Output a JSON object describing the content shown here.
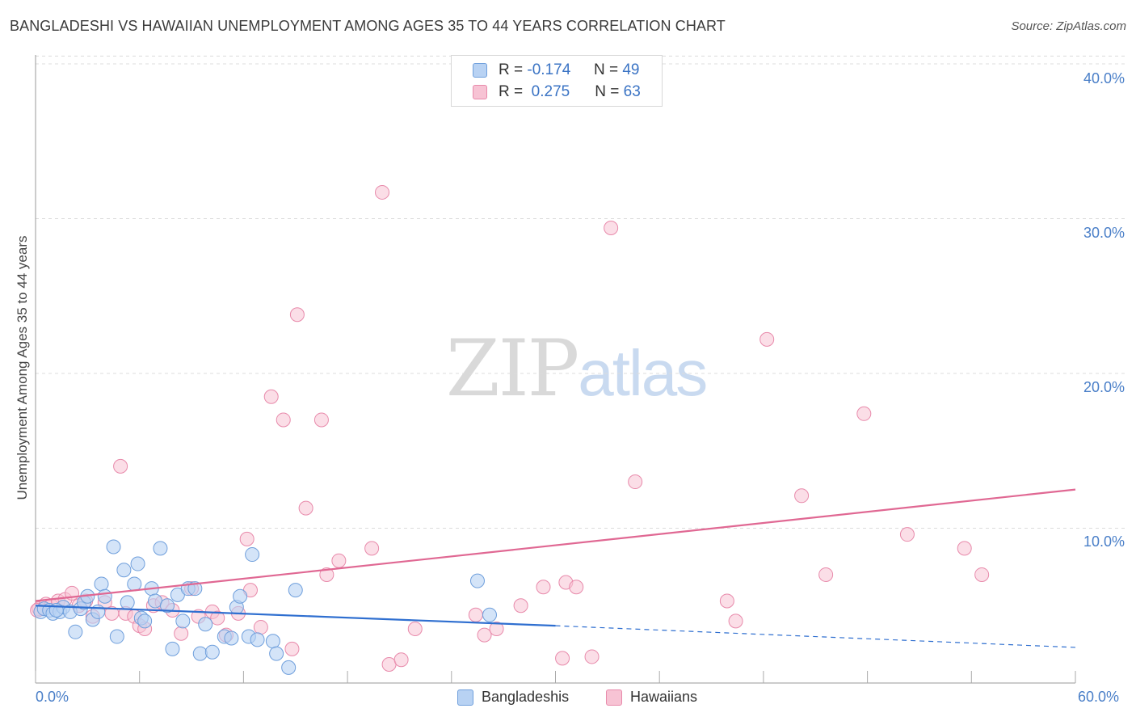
{
  "header": {
    "title": "BANGLADESHI VS HAWAIIAN UNEMPLOYMENT AMONG AGES 35 TO 44 YEARS CORRELATION CHART",
    "source": "Source: ZipAtlas.com"
  },
  "watermark": {
    "part1": "ZIP",
    "part2": "atlas"
  },
  "legend": {
    "rows": [
      {
        "r_label": "R =",
        "r_value": "-0.174",
        "n_label": "N =",
        "n_value": "49"
      },
      {
        "r_label": "R =",
        "r_value": "0.275",
        "n_label": "N =",
        "n_value": "63"
      }
    ]
  },
  "bottom_legend": {
    "s1": "Bangladeshis",
    "s2": "Hawaiians"
  },
  "colors": {
    "blue_fill": "#b8d2f3",
    "blue_stroke": "#6f9fdc",
    "blue_line": "#2f6fd0",
    "pink_fill": "#f7c3d4",
    "pink_stroke": "#e88aab",
    "pink_line": "#e06893",
    "tick": "#4a7fc8",
    "grid": "#dcdcdc"
  },
  "chart_data": {
    "type": "scatter",
    "title": "BANGLADESHI VS HAWAIIAN UNEMPLOYMENT AMONG AGES 35 TO 44 YEARS CORRELATION CHART",
    "xlabel": "",
    "ylabel": "Unemployment Among Ages 35 to 44 years",
    "xlim": [
      0,
      60
    ],
    "ylim": [
      0,
      40
    ],
    "x_tick_labels": [
      "0.0%",
      "60.0%"
    ],
    "y_ticks": [
      10,
      20,
      30,
      40
    ],
    "y_tick_labels": [
      "10.0%",
      "20.0%",
      "30.0%",
      "40.0%"
    ],
    "grid": true,
    "series": [
      {
        "name": "Bangladeshis",
        "r": -0.174,
        "n": 49,
        "trend": {
          "x0": 0,
          "y0": 5.0,
          "x1": 30,
          "y1": 3.7,
          "dash_to_x": 60,
          "dash_to_y": 2.3
        },
        "points": [
          [
            0.3,
            4.6
          ],
          [
            0.5,
            4.8
          ],
          [
            0.8,
            4.7
          ],
          [
            1.0,
            4.5
          ],
          [
            1.4,
            4.6
          ],
          [
            1.6,
            4.9
          ],
          [
            2.0,
            4.6
          ],
          [
            2.3,
            3.3
          ],
          [
            2.6,
            4.8
          ],
          [
            2.8,
            5.2
          ],
          [
            3.0,
            5.6
          ],
          [
            3.3,
            4.1
          ],
          [
            3.6,
            4.6
          ],
          [
            3.8,
            6.4
          ],
          [
            4.0,
            5.6
          ],
          [
            4.5,
            8.8
          ],
          [
            4.7,
            3.0
          ],
          [
            5.1,
            7.3
          ],
          [
            5.3,
            5.2
          ],
          [
            5.7,
            6.4
          ],
          [
            5.9,
            7.7
          ],
          [
            6.1,
            4.2
          ],
          [
            6.3,
            4.0
          ],
          [
            6.7,
            6.1
          ],
          [
            6.9,
            5.3
          ],
          [
            7.2,
            8.7
          ],
          [
            7.6,
            5.0
          ],
          [
            7.9,
            2.2
          ],
          [
            8.2,
            5.7
          ],
          [
            8.5,
            4.0
          ],
          [
            8.8,
            6.1
          ],
          [
            9.2,
            6.1
          ],
          [
            9.5,
            1.9
          ],
          [
            9.8,
            3.8
          ],
          [
            10.2,
            2.0
          ],
          [
            10.9,
            3.0
          ],
          [
            11.3,
            2.9
          ],
          [
            11.6,
            4.9
          ],
          [
            11.8,
            5.6
          ],
          [
            12.5,
            8.3
          ],
          [
            12.3,
            3.0
          ],
          [
            12.8,
            2.8
          ],
          [
            13.7,
            2.7
          ],
          [
            13.9,
            1.9
          ],
          [
            14.6,
            1.0
          ],
          [
            15.0,
            6.0
          ],
          [
            25.5,
            6.6
          ],
          [
            26.2,
            4.4
          ],
          [
            1.2,
            4.7
          ]
        ]
      },
      {
        "name": "Hawaiians",
        "r": 0.275,
        "n": 63,
        "trend": {
          "x0": 0,
          "y0": 5.3,
          "x1": 60,
          "y1": 12.5
        },
        "points": [
          [
            0.2,
            4.8
          ],
          [
            0.6,
            5.1
          ],
          [
            0.9,
            5.0
          ],
          [
            1.3,
            5.3
          ],
          [
            1.7,
            5.4
          ],
          [
            2.1,
            5.8
          ],
          [
            2.5,
            5.0
          ],
          [
            2.9,
            5.3
          ],
          [
            3.3,
            4.3
          ],
          [
            4.0,
            5.2
          ],
          [
            4.4,
            4.5
          ],
          [
            4.9,
            14.0
          ],
          [
            5.2,
            4.5
          ],
          [
            5.7,
            4.3
          ],
          [
            6.0,
            3.7
          ],
          [
            6.3,
            3.5
          ],
          [
            6.8,
            5.0
          ],
          [
            7.3,
            5.2
          ],
          [
            7.9,
            4.7
          ],
          [
            8.4,
            3.2
          ],
          [
            9.0,
            6.1
          ],
          [
            9.4,
            4.3
          ],
          [
            10.2,
            4.6
          ],
          [
            10.5,
            4.2
          ],
          [
            11.0,
            3.1
          ],
          [
            11.7,
            4.5
          ],
          [
            12.2,
            9.3
          ],
          [
            12.4,
            6.0
          ],
          [
            13.0,
            3.6
          ],
          [
            13.6,
            18.5
          ],
          [
            14.3,
            17.0
          ],
          [
            14.8,
            2.2
          ],
          [
            15.1,
            23.8
          ],
          [
            15.6,
            11.3
          ],
          [
            16.5,
            17.0
          ],
          [
            16.8,
            7.0
          ],
          [
            17.5,
            7.9
          ],
          [
            19.4,
            8.7
          ],
          [
            20.0,
            31.7
          ],
          [
            20.4,
            1.2
          ],
          [
            21.1,
            1.5
          ],
          [
            21.9,
            3.5
          ],
          [
            25.4,
            4.4
          ],
          [
            25.9,
            3.1
          ],
          [
            26.6,
            3.5
          ],
          [
            28.0,
            5.0
          ],
          [
            29.3,
            6.2
          ],
          [
            30.4,
            1.6
          ],
          [
            30.6,
            6.5
          ],
          [
            31.2,
            6.2
          ],
          [
            32.1,
            1.7
          ],
          [
            33.2,
            29.4
          ],
          [
            34.6,
            13.0
          ],
          [
            39.9,
            5.3
          ],
          [
            40.4,
            4.0
          ],
          [
            42.2,
            22.2
          ],
          [
            44.2,
            12.1
          ],
          [
            45.6,
            7.0
          ],
          [
            47.8,
            17.4
          ],
          [
            50.3,
            9.6
          ],
          [
            53.6,
            8.7
          ],
          [
            54.6,
            7.0
          ],
          [
            0.1,
            4.7
          ]
        ]
      }
    ]
  }
}
